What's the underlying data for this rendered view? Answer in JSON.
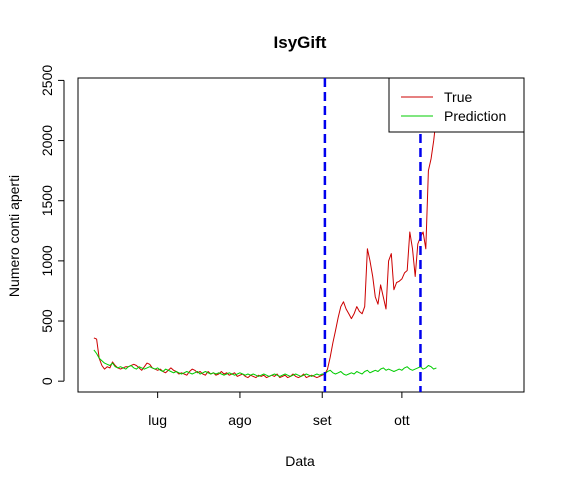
{
  "chart_data": {
    "type": "line",
    "title": "IsyGift",
    "xlabel": "Data",
    "ylabel": "Numero conti aperti",
    "xlim": [
      0,
      168
    ],
    "ylim": [
      -90,
      2520
    ],
    "xticks": [
      {
        "value": 30,
        "label": "lug"
      },
      {
        "value": 61,
        "label": "ago"
      },
      {
        "value": 92,
        "label": "set"
      },
      {
        "value": 122,
        "label": "ott"
      }
    ],
    "yticks": [
      0,
      500,
      1000,
      1500,
      2000,
      2500
    ],
    "legend": {
      "position": "top-right",
      "entries": [
        {
          "label": "True",
          "color": "#cc0000"
        },
        {
          "label": "Prediction",
          "color": "#00cc00"
        }
      ]
    },
    "vlines": [
      {
        "x": 93,
        "color": "#0000ee",
        "style": "dashed"
      },
      {
        "x": 129,
        "color": "#0000ee",
        "style": "dashed"
      }
    ],
    "series": [
      {
        "name": "True",
        "color": "#cc0000",
        "points": [
          [
            6,
            360
          ],
          [
            7,
            350
          ],
          [
            8,
            190
          ],
          [
            9,
            130
          ],
          [
            10,
            100
          ],
          [
            11,
            120
          ],
          [
            12,
            110
          ],
          [
            13,
            160
          ],
          [
            14,
            130
          ],
          [
            15,
            110
          ],
          [
            16,
            100
          ],
          [
            17,
            110
          ],
          [
            18,
            120
          ],
          [
            19,
            120
          ],
          [
            20,
            130
          ],
          [
            21,
            140
          ],
          [
            22,
            130
          ],
          [
            23,
            110
          ],
          [
            24,
            90
          ],
          [
            25,
            120
          ],
          [
            26,
            150
          ],
          [
            27,
            140
          ],
          [
            28,
            110
          ],
          [
            29,
            100
          ],
          [
            30,
            90
          ],
          [
            31,
            100
          ],
          [
            32,
            80
          ],
          [
            33,
            70
          ],
          [
            34,
            90
          ],
          [
            35,
            110
          ],
          [
            36,
            90
          ],
          [
            37,
            80
          ],
          [
            38,
            60
          ],
          [
            39,
            70
          ],
          [
            40,
            60
          ],
          [
            41,
            50
          ],
          [
            42,
            80
          ],
          [
            43,
            100
          ],
          [
            44,
            90
          ],
          [
            45,
            70
          ],
          [
            46,
            80
          ],
          [
            47,
            60
          ],
          [
            48,
            50
          ],
          [
            49,
            80
          ],
          [
            50,
            60
          ],
          [
            51,
            70
          ],
          [
            52,
            50
          ],
          [
            53,
            60
          ],
          [
            54,
            80
          ],
          [
            55,
            60
          ],
          [
            56,
            70
          ],
          [
            57,
            50
          ],
          [
            58,
            60
          ],
          [
            59,
            70
          ],
          [
            60,
            40
          ],
          [
            61,
            50
          ],
          [
            62,
            60
          ],
          [
            63,
            40
          ],
          [
            64,
            30
          ],
          [
            65,
            50
          ],
          [
            66,
            40
          ],
          [
            67,
            30
          ],
          [
            68,
            50
          ],
          [
            69,
            40
          ],
          [
            70,
            50
          ],
          [
            71,
            30
          ],
          [
            72,
            40
          ],
          [
            73,
            50
          ],
          [
            74,
            40
          ],
          [
            75,
            60
          ],
          [
            76,
            30
          ],
          [
            77,
            40
          ],
          [
            78,
            50
          ],
          [
            79,
            30
          ],
          [
            80,
            40
          ],
          [
            81,
            60
          ],
          [
            82,
            40
          ],
          [
            83,
            30
          ],
          [
            84,
            40
          ],
          [
            85,
            60
          ],
          [
            86,
            30
          ],
          [
            87,
            40
          ],
          [
            88,
            50
          ],
          [
            89,
            40
          ],
          [
            90,
            30
          ],
          [
            91,
            40
          ],
          [
            92,
            50
          ],
          [
            93,
            60
          ],
          [
            94,
            100
          ],
          [
            95,
            200
          ],
          [
            96,
            320
          ],
          [
            97,
            420
          ],
          [
            98,
            530
          ],
          [
            99,
            620
          ],
          [
            100,
            660
          ],
          [
            101,
            600
          ],
          [
            102,
            560
          ],
          [
            103,
            520
          ],
          [
            104,
            560
          ],
          [
            105,
            620
          ],
          [
            106,
            580
          ],
          [
            107,
            560
          ],
          [
            108,
            620
          ],
          [
            109,
            1100
          ],
          [
            110,
            1000
          ],
          [
            111,
            870
          ],
          [
            112,
            700
          ],
          [
            113,
            640
          ],
          [
            114,
            800
          ],
          [
            115,
            700
          ],
          [
            116,
            600
          ],
          [
            117,
            1000
          ],
          [
            118,
            1060
          ],
          [
            119,
            760
          ],
          [
            120,
            820
          ],
          [
            121,
            830
          ],
          [
            122,
            850
          ],
          [
            123,
            900
          ],
          [
            124,
            920
          ],
          [
            125,
            1240
          ],
          [
            126,
            1100
          ],
          [
            127,
            870
          ],
          [
            128,
            1140
          ],
          [
            129,
            1200
          ],
          [
            130,
            1240
          ],
          [
            131,
            1100
          ],
          [
            132,
            1750
          ],
          [
            133,
            1850
          ],
          [
            134,
            2000
          ],
          [
            135,
            2200
          ]
        ]
      },
      {
        "name": "Prediction",
        "color": "#00cc00",
        "points": [
          [
            6,
            260
          ],
          [
            7,
            230
          ],
          [
            8,
            190
          ],
          [
            9,
            170
          ],
          [
            10,
            150
          ],
          [
            11,
            140
          ],
          [
            12,
            130
          ],
          [
            13,
            150
          ],
          [
            14,
            120
          ],
          [
            15,
            110
          ],
          [
            16,
            120
          ],
          [
            17,
            110
          ],
          [
            18,
            100
          ],
          [
            19,
            120
          ],
          [
            20,
            130
          ],
          [
            21,
            110
          ],
          [
            22,
            100
          ],
          [
            23,
            120
          ],
          [
            24,
            110
          ],
          [
            25,
            100
          ],
          [
            26,
            110
          ],
          [
            27,
            120
          ],
          [
            28,
            110
          ],
          [
            29,
            100
          ],
          [
            30,
            110
          ],
          [
            31,
            90
          ],
          [
            32,
            80
          ],
          [
            33,
            100
          ],
          [
            34,
            90
          ],
          [
            35,
            80
          ],
          [
            36,
            70
          ],
          [
            37,
            80
          ],
          [
            38,
            70
          ],
          [
            39,
            60
          ],
          [
            40,
            70
          ],
          [
            41,
            80
          ],
          [
            42,
            70
          ],
          [
            43,
            60
          ],
          [
            44,
            70
          ],
          [
            45,
            80
          ],
          [
            46,
            60
          ],
          [
            47,
            70
          ],
          [
            48,
            80
          ],
          [
            49,
            70
          ],
          [
            50,
            60
          ],
          [
            51,
            70
          ],
          [
            52,
            60
          ],
          [
            53,
            70
          ],
          [
            54,
            60
          ],
          [
            55,
            50
          ],
          [
            56,
            60
          ],
          [
            57,
            70
          ],
          [
            58,
            60
          ],
          [
            59,
            50
          ],
          [
            60,
            60
          ],
          [
            61,
            70
          ],
          [
            62,
            60
          ],
          [
            63,
            50
          ],
          [
            64,
            60
          ],
          [
            65,
            50
          ],
          [
            66,
            60
          ],
          [
            67,
            50
          ],
          [
            68,
            40
          ],
          [
            69,
            50
          ],
          [
            70,
            60
          ],
          [
            71,
            50
          ],
          [
            72,
            40
          ],
          [
            73,
            50
          ],
          [
            74,
            60
          ],
          [
            75,
            50
          ],
          [
            76,
            40
          ],
          [
            77,
            50
          ],
          [
            78,
            60
          ],
          [
            79,
            50
          ],
          [
            80,
            40
          ],
          [
            81,
            50
          ],
          [
            82,
            60
          ],
          [
            83,
            50
          ],
          [
            84,
            40
          ],
          [
            85,
            50
          ],
          [
            86,
            60
          ],
          [
            87,
            50
          ],
          [
            88,
            40
          ],
          [
            89,
            50
          ],
          [
            90,
            60
          ],
          [
            91,
            50
          ],
          [
            92,
            60
          ],
          [
            93,
            60
          ],
          [
            94,
            80
          ],
          [
            95,
            90
          ],
          [
            96,
            70
          ],
          [
            97,
            60
          ],
          [
            98,
            70
          ],
          [
            99,
            80
          ],
          [
            100,
            60
          ],
          [
            101,
            50
          ],
          [
            102,
            60
          ],
          [
            103,
            70
          ],
          [
            104,
            60
          ],
          [
            105,
            80
          ],
          [
            106,
            70
          ],
          [
            107,
            60
          ],
          [
            108,
            80
          ],
          [
            109,
            90
          ],
          [
            110,
            70
          ],
          [
            111,
            80
          ],
          [
            112,
            90
          ],
          [
            113,
            80
          ],
          [
            114,
            100
          ],
          [
            115,
            110
          ],
          [
            116,
            90
          ],
          [
            117,
            100
          ],
          [
            118,
            90
          ],
          [
            119,
            80
          ],
          [
            120,
            90
          ],
          [
            121,
            100
          ],
          [
            122,
            90
          ],
          [
            123,
            110
          ],
          [
            124,
            120
          ],
          [
            125,
            100
          ],
          [
            126,
            90
          ],
          [
            127,
            100
          ],
          [
            128,
            110
          ],
          [
            129,
            120
          ],
          [
            130,
            100
          ],
          [
            131,
            110
          ],
          [
            132,
            130
          ],
          [
            133,
            120
          ],
          [
            134,
            100
          ],
          [
            135,
            110
          ]
        ]
      }
    ]
  }
}
